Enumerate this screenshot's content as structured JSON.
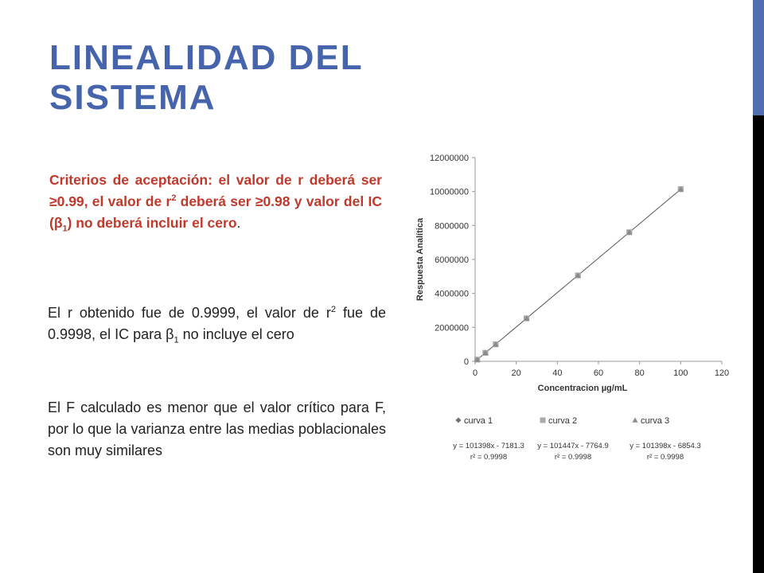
{
  "slide": {
    "title_line1": "LINEALIDAD DEL",
    "title_line2": "SISTEMA",
    "criteria": {
      "part1": "Criterios de aceptación: el valor de r deberá ser ≥0.99, el valor de r",
      "sup1": "2",
      "part2": " deberá ser ≥0.98 y valor del IC (β",
      "sub1": "1",
      "part3": ") no deberá incluir el cero",
      "tail": "."
    },
    "paragraph1": {
      "part1": "El r obtenido fue de 0.9999, el valor de r",
      "sup1": "2",
      "part2": " fue de 0.9998, el IC para β",
      "sub1": "1",
      "part3": " no incluye el cero"
    },
    "paragraph2": "El F calculado es menor que el valor crítico para F, por lo que la varianza entre las medias poblacionales son muy similares"
  },
  "colors": {
    "title": "#4664ac",
    "criteria": "#c0392b",
    "accent_bar": "#4f6fae",
    "series1": "#707070",
    "series2": "#a8a8a8",
    "series3": "#8a8a8a"
  },
  "chart_data": {
    "type": "scatter",
    "xlabel": "Concentracion µg/mL",
    "ylabel": "Respuesta Analítica",
    "xlim": [
      0,
      120
    ],
    "ylim": [
      0,
      12000000
    ],
    "x_ticks": [
      "0",
      "20",
      "40",
      "60",
      "80",
      "100",
      "120"
    ],
    "y_ticks": [
      "0",
      "2000000",
      "4000000",
      "6000000",
      "8000000",
      "10000000",
      "12000000"
    ],
    "x_tick_values": [
      0,
      20,
      40,
      60,
      80,
      100,
      120
    ],
    "y_tick_values": [
      0,
      2000000,
      4000000,
      6000000,
      8000000,
      10000000,
      12000000
    ],
    "grid": false,
    "legend_position": "bottom",
    "trendline": {
      "x": [
        0,
        100
      ],
      "y": [
        -7181.3,
        10132618.7
      ]
    },
    "series": [
      {
        "name": "curva 1",
        "marker": "diamond",
        "equation": "y = 101398x - 7181.3",
        "r2": "r² = 0.9998",
        "x": [
          1,
          5,
          10,
          25,
          50,
          75,
          100
        ],
        "y": [
          100000,
          500000,
          1000000,
          2530000,
          5060000,
          7600000,
          10130000
        ]
      },
      {
        "name": "curva 2",
        "marker": "square",
        "equation": "y = 101447x - 7764.9",
        "r2": "r² = 0.9998",
        "x": [
          1,
          5,
          10,
          25,
          50,
          75,
          100
        ],
        "y": [
          100000,
          500000,
          1000000,
          2530000,
          5060000,
          7600000,
          10140000
        ]
      },
      {
        "name": "curva 3",
        "marker": "triangle",
        "equation": "y = 101398x - 6854.3",
        "r2": "r² = 0.9998",
        "x": [
          1,
          5,
          10,
          25,
          50,
          75,
          100
        ],
        "y": [
          100000,
          500000,
          1000000,
          2530000,
          5060000,
          7600000,
          10130000
        ]
      }
    ]
  }
}
